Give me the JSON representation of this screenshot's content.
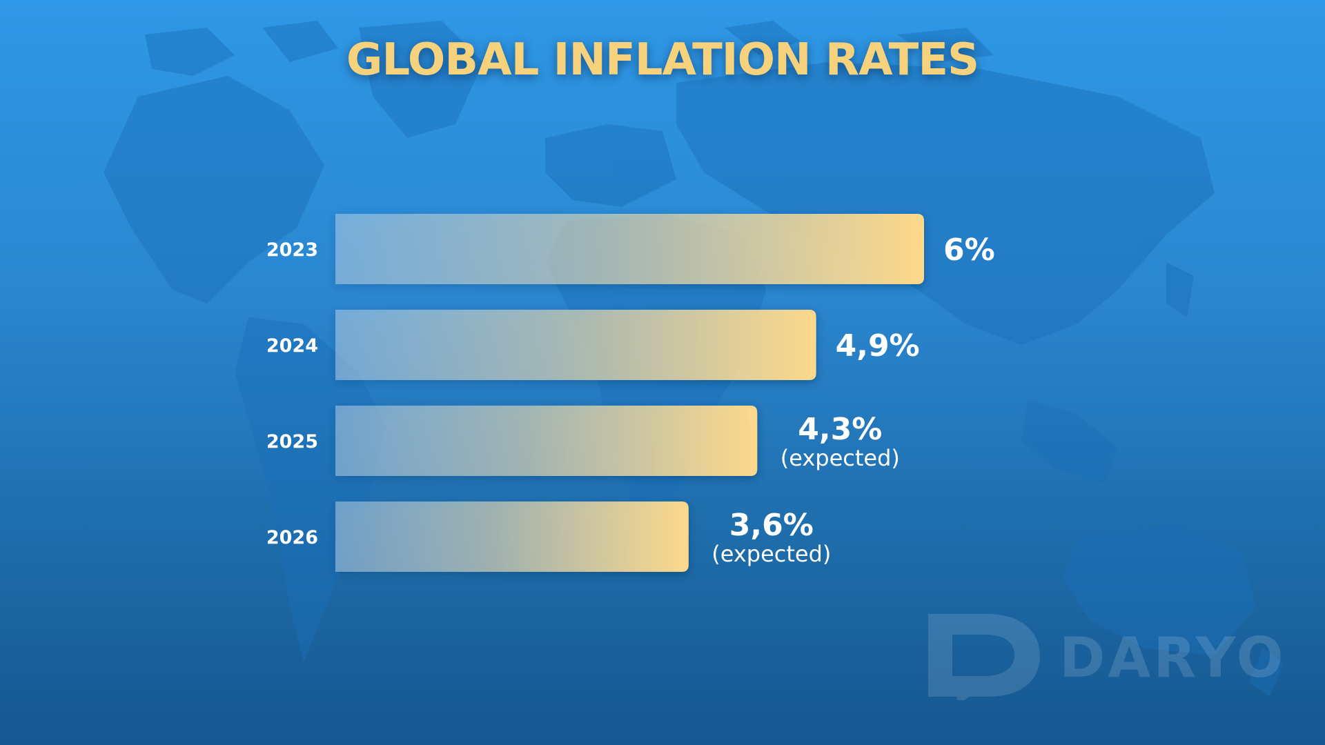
{
  "chart_data": {
    "type": "bar",
    "orientation": "horizontal",
    "title": "GLOBAL INFLATION RATES",
    "categories": [
      "2023",
      "2024",
      "2025",
      "2026"
    ],
    "values": [
      6.0,
      4.9,
      4.3,
      3.6
    ],
    "value_labels": [
      "6%",
      "4,9%",
      "4,3%",
      "3,6%"
    ],
    "value_notes": [
      "",
      "",
      "(expected)",
      "(expected)"
    ],
    "xlim": [
      0,
      6
    ],
    "grid": false,
    "legend": "none"
  },
  "colors": {
    "bar_end": "#fdd98a",
    "bar_start": "#bdd6ea",
    "title": "#f7d27c",
    "labels": "#ffffff"
  },
  "watermark": {
    "text": "DARYO",
    "logo_icon": "daryo-d-logo-icon"
  }
}
